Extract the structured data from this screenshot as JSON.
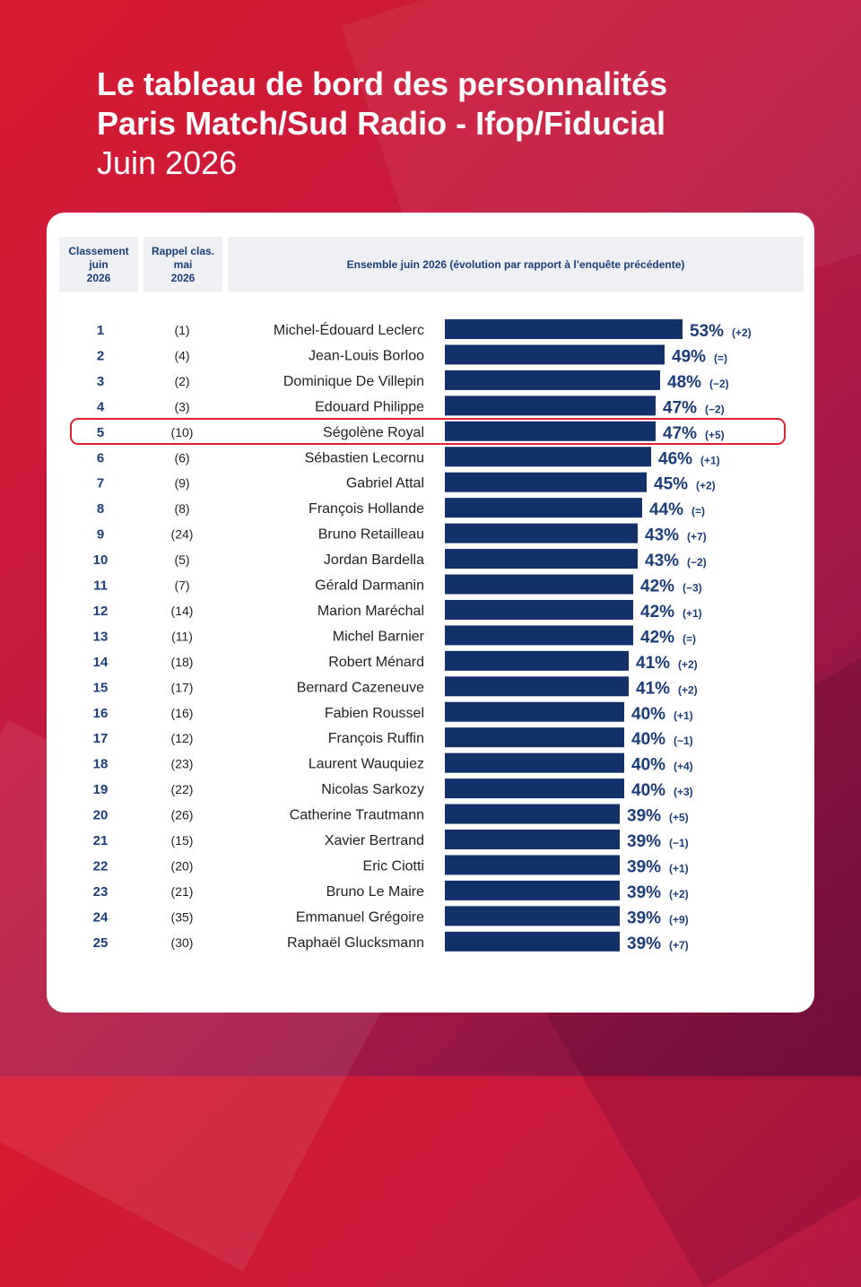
{
  "header": {
    "title_line1": "Le tableau de bord des personnalités",
    "title_line2": "Paris Match/Sud Radio - Ifop/Fiducial",
    "subtitle": "Juin 2026"
  },
  "table_header": {
    "col_rank": [
      "Classement",
      "juin",
      "2026"
    ],
    "col_prev": [
      "Rappel clas.",
      "mai",
      "2026"
    ],
    "col_main": "Ensemble juin 2026 (évolution par rapport à l’enquête précédente)"
  },
  "colors": {
    "bar": "#12316b",
    "text_blue": "#1a3d7c",
    "highlight": "#e0202e"
  },
  "highlighted_rank": 5,
  "chart_data": {
    "type": "bar",
    "orientation": "horizontal",
    "title": "",
    "xlabel": "",
    "ylabel": "",
    "xlim": [
      0,
      53
    ],
    "ranks": [
      1,
      2,
      3,
      4,
      5,
      6,
      7,
      8,
      9,
      10,
      11,
      12,
      13,
      14,
      15,
      16,
      17,
      18,
      19,
      20,
      21,
      22,
      23,
      24,
      25
    ],
    "previous_ranks": [
      "(1)",
      "(4)",
      "(2)",
      "(3)",
      "(10)",
      "(6)",
      "(9)",
      "(8)",
      "(24)",
      "(5)",
      "(7)",
      "(14)",
      "(11)",
      "(18)",
      "(17)",
      "(16)",
      "(12)",
      "(23)",
      "(22)",
      "(26)",
      "(15)",
      "(20)",
      "(21)",
      "(35)",
      "(30)"
    ],
    "categories": [
      "Michel-Édouard Leclerc",
      "Jean-Louis Borloo",
      "Dominique De Villepin",
      "Edouard Philippe",
      "Ségolène Royal",
      "Sébastien Lecornu",
      "Gabriel Attal",
      "François Hollande",
      "Bruno Retailleau",
      "Jordan Bardella",
      "Gérald Darmanin",
      "Marion Maréchal",
      "Michel Barnier",
      "Robert Ménard",
      "Bernard Cazeneuve",
      "Fabien Roussel",
      "François Ruffin",
      "Laurent Wauquiez",
      "Nicolas Sarkozy",
      "Catherine Trautmann",
      "Xavier Bertrand",
      "Eric Ciotti",
      "Bruno Le Maire",
      "Emmanuel Grégoire",
      "Raphaël Glucksmann"
    ],
    "values": [
      53,
      49,
      48,
      47,
      47,
      46,
      45,
      44,
      43,
      43,
      42,
      42,
      42,
      41,
      41,
      40,
      40,
      40,
      40,
      39,
      39,
      39,
      39,
      39,
      39
    ],
    "value_labels": [
      "53%",
      "49%",
      "48%",
      "47%",
      "47%",
      "46%",
      "45%",
      "44%",
      "43%",
      "43%",
      "42%",
      "42%",
      "42%",
      "41%",
      "41%",
      "40%",
      "40%",
      "40%",
      "40%",
      "39%",
      "39%",
      "39%",
      "39%",
      "39%",
      "39%"
    ],
    "changes": [
      "(+2)",
      "(=)",
      "(−2)",
      "(−2)",
      "(+5)",
      "(+1)",
      "(+2)",
      "(=)",
      "(+7)",
      "(−2)",
      "(−3)",
      "(+1)",
      "(=)",
      "(+2)",
      "(+2)",
      "(+1)",
      "(−1)",
      "(+4)",
      "(+3)",
      "(+5)",
      "(−1)",
      "(+1)",
      "(+2)",
      "(+9)",
      "(+7)"
    ]
  }
}
